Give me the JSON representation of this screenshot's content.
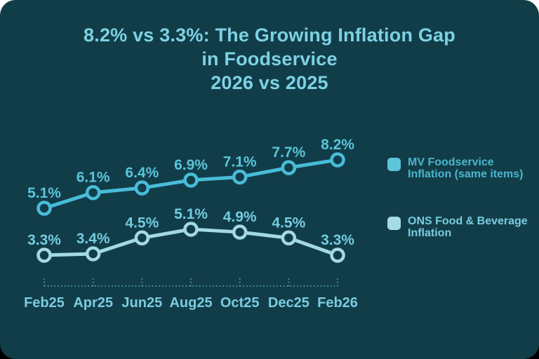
{
  "frame": {
    "background": "#113d49",
    "corner_radius": "22px"
  },
  "title": {
    "lines": [
      "8.2% vs 3.3%: The Growing Inflation Gap",
      "in Foodservice",
      "2026 vs 2025"
    ],
    "color": "#7dd2e3"
  },
  "chart_data": {
    "type": "line",
    "title": "8.2% vs 3.3%: The Growing Inflation Gap in Foodservice 2026 vs 2025",
    "categories": [
      "Feb25",
      "Apr25",
      "Jun25",
      "Aug25",
      "Oct25",
      "Dec25",
      "Feb26"
    ],
    "series": [
      {
        "name": "MV Foodservice Inflation (same items)",
        "values": [
          5.1,
          6.1,
          6.4,
          6.9,
          7.1,
          7.7,
          8.2
        ],
        "color": "#49bcd8",
        "label_color": "#5ac4da"
      },
      {
        "name": "ONS Food & Beverage Inflation",
        "values": [
          3.3,
          3.4,
          4.5,
          5.1,
          4.9,
          4.5,
          3.3
        ],
        "color": "#a3d9e5",
        "label_color": "#74cce0"
      }
    ],
    "xlabel": "",
    "ylabel": "",
    "ylim": [
      2.5,
      9.0
    ],
    "grid": false,
    "legend_position": "right",
    "data_label_format": "one decimal + %",
    "marker_style": "open-circle",
    "axis_line_style": "dotted",
    "axis_line_color": "#4fa3b8",
    "axis_label_color": "#7bccdf"
  },
  "legend": {
    "entries": [
      {
        "label": "MV Foodservice Inflation (same items)",
        "label_lines": [
          "MV Foodservice",
          "Inflation (same items)"
        ],
        "swatch_color": "#5ec4da",
        "text_color": "#49b6cd"
      },
      {
        "label": "ONS Food & Beverage Inflation",
        "label_lines": [
          "ONS Food & Beverage",
          "Inflation"
        ],
        "swatch_color": "#a3dbe7",
        "text_color": "#79cde0"
      }
    ]
  }
}
